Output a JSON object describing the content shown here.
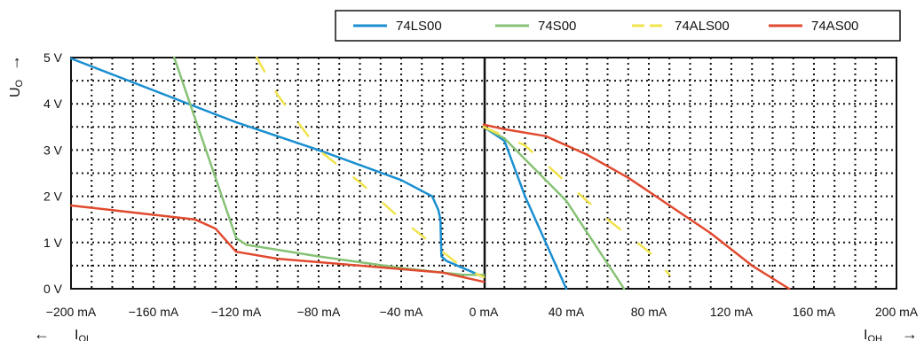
{
  "chart_data": {
    "type": "line",
    "y_axis": {
      "label": "U",
      "label_sub": "O",
      "label_arrow": "→",
      "ylim": [
        0,
        5
      ],
      "ticks": [
        {
          "value": 0,
          "label": "0 V"
        },
        {
          "value": 1,
          "label": "1 V"
        },
        {
          "value": 2,
          "label": "2 V"
        },
        {
          "value": 3,
          "label": "3 V"
        },
        {
          "value": 4,
          "label": "4 V"
        },
        {
          "value": 5,
          "label": "5 V"
        }
      ]
    },
    "x_axis": {
      "xlim": [
        -200,
        200
      ],
      "unit": "mA",
      "ticks": [
        {
          "value": -200,
          "label": "−200 mA"
        },
        {
          "value": -160,
          "label": "−160 mA"
        },
        {
          "value": -120,
          "label": "−120 mA"
        },
        {
          "value": -80,
          "label": "−80 mA"
        },
        {
          "value": -40,
          "label": "−40 mA"
        },
        {
          "value": 0,
          "label": "0 mA"
        },
        {
          "value": 40,
          "label": "40 mA"
        },
        {
          "value": 80,
          "label": "80 mA"
        },
        {
          "value": 120,
          "label": "120 mA"
        },
        {
          "value": 160,
          "label": "160 mA"
        },
        {
          "value": 200,
          "label": "200 mA"
        }
      ],
      "left_label": {
        "arrow": "←",
        "text": "I",
        "sub": "OL"
      },
      "right_label": {
        "arrow": "→",
        "text": "I",
        "sub": "OH"
      }
    },
    "grid": "dotted",
    "legend": "top",
    "series": [
      {
        "name": "74LS00",
        "color": "#1a8fd0",
        "dashed": false,
        "low": [
          [
            -200,
            4.98
          ],
          [
            -120,
            3.6
          ],
          [
            -80,
            3.0
          ],
          [
            -40,
            2.35
          ],
          [
            -25,
            2.0
          ],
          [
            -22,
            1.7
          ],
          [
            -21,
            1.5
          ],
          [
            -20.5,
            0.7
          ],
          [
            -18,
            0.6
          ],
          [
            -5,
            0.35
          ],
          [
            0,
            0.25
          ]
        ],
        "high": [
          [
            0,
            3.5
          ],
          [
            10,
            3.2
          ],
          [
            20,
            2.0
          ],
          [
            30,
            1.0
          ],
          [
            40,
            0.0
          ]
        ]
      },
      {
        "name": "74S00",
        "color": "#86c275",
        "dashed": false,
        "low": [
          [
            -150,
            5.0
          ],
          [
            -140,
            3.7
          ],
          [
            -130,
            2.4
          ],
          [
            -120,
            1.1
          ],
          [
            -115,
            0.95
          ],
          [
            -80,
            0.7
          ],
          [
            -40,
            0.45
          ],
          [
            -10,
            0.3
          ],
          [
            0,
            0.3
          ]
        ],
        "high": [
          [
            0,
            3.5
          ],
          [
            10,
            3.25
          ],
          [
            40,
            1.9
          ],
          [
            68,
            0.0
          ]
        ]
      },
      {
        "name": "74ALS00",
        "color": "#f0e34c",
        "dashed": true,
        "low": [
          [
            -110,
            5.0
          ],
          [
            -100,
            4.2
          ],
          [
            -80,
            3.0
          ],
          [
            -60,
            2.3
          ],
          [
            -40,
            1.5
          ],
          [
            -20,
            0.8
          ],
          [
            -10,
            0.45
          ],
          [
            0,
            0.25
          ]
        ],
        "high": [
          [
            0,
            3.5
          ],
          [
            20,
            3.1
          ],
          [
            40,
            2.3
          ],
          [
            60,
            1.5
          ],
          [
            80,
            0.8
          ],
          [
            90,
            0.3
          ]
        ]
      },
      {
        "name": "74AS00",
        "color": "#e04a2f",
        "dashed": false,
        "low": [
          [
            -200,
            1.8
          ],
          [
            -160,
            1.6
          ],
          [
            -140,
            1.5
          ],
          [
            -130,
            1.3
          ],
          [
            -120,
            0.8
          ],
          [
            -100,
            0.65
          ],
          [
            -60,
            0.5
          ],
          [
            -20,
            0.35
          ],
          [
            0,
            0.15
          ]
        ],
        "high": [
          [
            0,
            3.55
          ],
          [
            10,
            3.45
          ],
          [
            30,
            3.3
          ],
          [
            50,
            2.9
          ],
          [
            70,
            2.4
          ],
          [
            90,
            1.8
          ],
          [
            110,
            1.2
          ],
          [
            130,
            0.5
          ],
          [
            148,
            0.0
          ]
        ]
      }
    ]
  }
}
